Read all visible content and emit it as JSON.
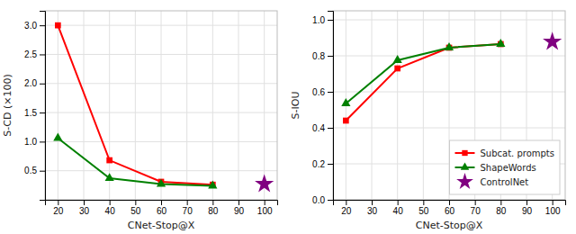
{
  "chart_data": [
    {
      "type": "line",
      "xlabel": "CNet-Stop@X",
      "ylabel": "S-CD (×100)",
      "xlim": [
        15,
        105
      ],
      "ylim": [
        0.0,
        3.25
      ],
      "xticks": [
        20,
        30,
        40,
        50,
        60,
        70,
        80,
        90,
        100
      ],
      "yticks": [
        0.5,
        {
          "value": 1.0,
          "label": "1.0"
        },
        1.5,
        {
          "value": 2.0,
          "label": "2.0"
        },
        2.5,
        {
          "value": 3.0,
          "label": "3.0"
        }
      ],
      "grid": true,
      "series": [
        {
          "type": "line",
          "color": "#ff0000",
          "marker": "square",
          "x": [
            20,
            40,
            60,
            80
          ],
          "values": [
            3.0,
            0.68,
            0.31,
            0.26
          ]
        },
        {
          "type": "line",
          "color": "#008000",
          "marker": "triangle",
          "x": [
            20,
            40,
            60,
            80
          ],
          "values": [
            1.06,
            0.37,
            0.27,
            0.24
          ]
        },
        {
          "type": "scatter",
          "color": "#800080",
          "marker": "star",
          "x": [
            100
          ],
          "values": [
            0.27
          ]
        }
      ]
    },
    {
      "type": "line",
      "xlabel": "CNet-Stop@X",
      "ylabel": "S-IOU",
      "xlim": [
        15,
        105
      ],
      "ylim": [
        0.0,
        1.05
      ],
      "xticks": [
        20,
        30,
        40,
        50,
        60,
        70,
        80,
        90,
        100
      ],
      "yticks": [
        {
          "value": 0.0,
          "label": "0.0"
        },
        0.2,
        0.4,
        0.6,
        0.8,
        {
          "value": 1.0,
          "label": "1.0"
        }
      ],
      "grid": true,
      "legend": "lower right",
      "series": [
        {
          "name": "Subcat. prompts",
          "type": "line",
          "color": "#ff0000",
          "marker": "square",
          "x": [
            20,
            40,
            60,
            80
          ],
          "values": [
            0.44,
            0.73,
            0.845,
            0.865
          ]
        },
        {
          "name": "ShapeWords",
          "type": "line",
          "color": "#008000",
          "marker": "triangle",
          "x": [
            20,
            40,
            60,
            80
          ],
          "values": [
            0.535,
            0.775,
            0.845,
            0.865
          ]
        },
        {
          "name": "ControlNet",
          "type": "scatter",
          "color": "#800080",
          "marker": "star",
          "x": [
            100
          ],
          "values": [
            0.878
          ]
        }
      ]
    }
  ]
}
